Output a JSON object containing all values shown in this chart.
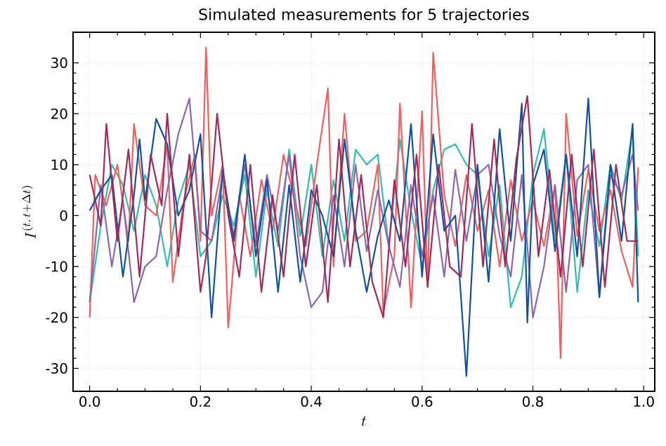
{
  "chart_data": {
    "type": "line",
    "title": "Simulated measurements for 5 trajectories",
    "xlabel": "t",
    "ylabel": "I^{(t,\\,t+\\Delta t)}",
    "xlim": [
      -0.03,
      1.02
    ],
    "ylim": [
      -34.5,
      36
    ],
    "xticks": [
      {
        "value": 0,
        "label": "0.0"
      },
      {
        "value": 0.2,
        "label": "0.2"
      },
      {
        "value": 0.4,
        "label": "0.4"
      },
      {
        "value": 0.6,
        "label": "0.6"
      },
      {
        "value": 0.8,
        "label": "0.8"
      },
      {
        "value": 1,
        "label": "1.0"
      }
    ],
    "yticks": [
      -30,
      -20,
      -10,
      0,
      10,
      20,
      30
    ],
    "grid": true,
    "marker": "none",
    "line_style": "solid",
    "series": [
      {
        "color": "#2ebfae",
        "x": [
          0,
          0.02,
          0.04,
          0.06,
          0.08,
          0.1,
          0.12,
          0.14,
          0.16,
          0.18,
          0.2,
          0.22,
          0.24,
          0.26,
          0.28,
          0.3,
          0.32,
          0.34,
          0.36,
          0.38,
          0.4,
          0.42,
          0.44,
          0.46,
          0.48,
          0.5,
          0.52,
          0.54,
          0.56,
          0.58,
          0.6,
          0.62,
          0.64,
          0.66,
          0.68,
          0.7,
          0.72,
          0.74,
          0.76,
          0.78,
          0.8,
          0.82,
          0.84,
          0.86,
          0.88,
          0.9,
          0.92,
          0.94,
          0.96,
          0.98,
          0.99
        ],
        "values": [
          -17,
          -2,
          10,
          6,
          -3,
          8,
          2,
          -10,
          3,
          10,
          -8,
          -5,
          4,
          -2,
          8,
          -12,
          5,
          -6,
          13,
          -4,
          10,
          -8,
          7,
          -5,
          13,
          10,
          12,
          -6,
          15,
          1,
          -10,
          5,
          13,
          14,
          10,
          8,
          -8,
          6,
          -18,
          -12,
          8,
          17,
          -5,
          12,
          -15,
          5,
          -6,
          10,
          3,
          17,
          -8
        ]
      },
      {
        "color": "#f25f5c",
        "x": [
          0,
          0.01,
          0.03,
          0.05,
          0.07,
          0.08,
          0.1,
          0.12,
          0.14,
          0.15,
          0.17,
          0.19,
          0.2,
          0.21,
          0.22,
          0.24,
          0.25,
          0.27,
          0.29,
          0.31,
          0.33,
          0.35,
          0.37,
          0.39,
          0.41,
          0.43,
          0.44,
          0.46,
          0.48,
          0.5,
          0.52,
          0.53,
          0.55,
          0.56,
          0.58,
          0.6,
          0.61,
          0.62,
          0.64,
          0.66,
          0.68,
          0.7,
          0.72,
          0.74,
          0.76,
          0.78,
          0.8,
          0.82,
          0.84,
          0.85,
          0.86,
          0.88,
          0.9,
          0.92,
          0.94,
          0.96,
          0.98,
          0.99
        ],
        "values": [
          -20,
          8,
          2,
          10,
          -5,
          18,
          2,
          0,
          14,
          -13,
          3,
          12,
          -5,
          33,
          0,
          10,
          -22,
          4,
          -8,
          7,
          -3,
          12,
          3,
          -6,
          10,
          25,
          -10,
          20,
          -5,
          -3,
          10,
          -19,
          -8,
          22,
          -18,
          20.5,
          -14,
          32,
          4,
          -6,
          8,
          -3,
          5,
          -10,
          7,
          -5,
          3,
          -6,
          6,
          -28,
          20,
          -4,
          9,
          -3,
          5,
          -7,
          -14,
          9.5
        ]
      },
      {
        "color": "#8c66b3",
        "x": [
          0,
          0.02,
          0.04,
          0.06,
          0.08,
          0.1,
          0.12,
          0.14,
          0.16,
          0.18,
          0.2,
          0.22,
          0.24,
          0.26,
          0.28,
          0.3,
          0.32,
          0.34,
          0.36,
          0.38,
          0.4,
          0.42,
          0.44,
          0.46,
          0.48,
          0.5,
          0.52,
          0.54,
          0.56,
          0.58,
          0.6,
          0.62,
          0.64,
          0.66,
          0.68,
          0.7,
          0.72,
          0.74,
          0.76,
          0.78,
          0.8,
          0.82,
          0.84,
          0.86,
          0.88,
          0.9,
          0.92,
          0.94,
          0.96,
          0.98,
          0.99
        ],
        "values": [
          -17,
          6,
          -10,
          3,
          -17,
          -10,
          -8,
          5,
          16,
          23,
          -3,
          -5,
          8,
          -4,
          10,
          -6,
          8,
          -3,
          12,
          -8,
          -18,
          -15,
          4,
          -10,
          10,
          -7,
          5,
          -6,
          -14,
          6,
          -8,
          4,
          -12,
          9,
          -5,
          8,
          10,
          -4,
          -12,
          8,
          -20,
          -10,
          6,
          -15,
          7,
          10,
          -16,
          8,
          4,
          12,
          1
        ]
      },
      {
        "color": "#0f52a0",
        "x": [
          0,
          0.02,
          0.04,
          0.06,
          0.08,
          0.09,
          0.1,
          0.12,
          0.14,
          0.16,
          0.18,
          0.2,
          0.22,
          0.24,
          0.26,
          0.28,
          0.3,
          0.32,
          0.34,
          0.36,
          0.38,
          0.4,
          0.42,
          0.44,
          0.46,
          0.48,
          0.5,
          0.52,
          0.54,
          0.56,
          0.58,
          0.6,
          0.62,
          0.64,
          0.66,
          0.68,
          0.7,
          0.72,
          0.74,
          0.76,
          0.78,
          0.79,
          0.8,
          0.82,
          0.84,
          0.86,
          0.88,
          0.9,
          0.92,
          0.94,
          0.96,
          0.98,
          0.99
        ],
        "values": [
          1,
          5,
          8,
          -12,
          4,
          15,
          3,
          19,
          14,
          0,
          5,
          16,
          -20,
          9,
          -5,
          12,
          -8,
          7,
          -15,
          6,
          -13,
          5,
          0,
          -8,
          15,
          -3,
          -15,
          -4,
          3,
          -5,
          18,
          -12,
          16,
          -3,
          0,
          -31.5,
          10,
          -13,
          17,
          -5,
          22,
          -21,
          6,
          13,
          -7,
          12,
          -8,
          23,
          -16,
          10,
          -5,
          18,
          -17
        ]
      },
      {
        "color": "#a3285c",
        "x": [
          0,
          0.02,
          0.03,
          0.05,
          0.07,
          0.09,
          0.11,
          0.13,
          0.14,
          0.16,
          0.18,
          0.2,
          0.21,
          0.23,
          0.25,
          0.27,
          0.29,
          0.31,
          0.33,
          0.35,
          0.37,
          0.39,
          0.41,
          0.43,
          0.45,
          0.47,
          0.49,
          0.51,
          0.53,
          0.55,
          0.57,
          0.59,
          0.61,
          0.63,
          0.65,
          0.67,
          0.69,
          0.71,
          0.73,
          0.75,
          0.77,
          0.79,
          0.81,
          0.83,
          0.85,
          0.87,
          0.89,
          0.91,
          0.93,
          0.95,
          0.97,
          0.99
        ],
        "values": [
          8,
          -2,
          18,
          -5,
          13,
          -12,
          12,
          2,
          20,
          -8,
          12,
          -15,
          -8,
          20,
          0,
          -12,
          10,
          -15,
          4,
          -12,
          12,
          -10,
          6,
          -17,
          15,
          -10,
          8,
          -13,
          -20,
          7,
          -10,
          12,
          -14,
          10,
          -10,
          -12,
          18,
          -10,
          15,
          -10,
          11,
          23.5,
          -8,
          9,
          -12,
          12,
          -10,
          13,
          -14,
          10,
          -5,
          -5
        ]
      }
    ]
  }
}
